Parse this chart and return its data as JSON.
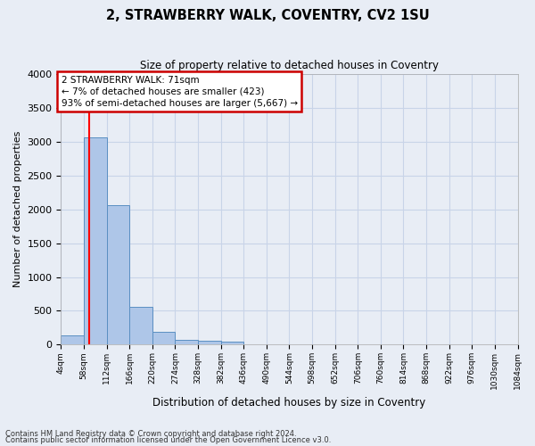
{
  "title": "2, STRAWBERRY WALK, COVENTRY, CV2 1SU",
  "subtitle": "Size of property relative to detached houses in Coventry",
  "xlabel": "Distribution of detached houses by size in Coventry",
  "ylabel": "Number of detached properties",
  "bin_labels": [
    "4sqm",
    "58sqm",
    "112sqm",
    "166sqm",
    "220sqm",
    "274sqm",
    "328sqm",
    "382sqm",
    "436sqm",
    "490sqm",
    "544sqm",
    "598sqm",
    "652sqm",
    "706sqm",
    "760sqm",
    "814sqm",
    "868sqm",
    "922sqm",
    "976sqm",
    "1030sqm",
    "1084sqm"
  ],
  "bar_values": [
    140,
    3060,
    2060,
    560,
    195,
    75,
    55,
    40,
    0,
    0,
    0,
    0,
    0,
    0,
    0,
    0,
    0,
    0,
    0,
    0
  ],
  "bar_color": "#aec6e8",
  "bar_edge_color": "#5a8fc2",
  "grid_color": "#c8d4e8",
  "background_color": "#e8edf5",
  "ylim": [
    0,
    4000
  ],
  "yticks": [
    0,
    500,
    1000,
    1500,
    2000,
    2500,
    3000,
    3500,
    4000
  ],
  "annotation_text": "2 STRAWBERRY WALK: 71sqm\n← 7% of detached houses are smaller (423)\n93% of semi-detached houses are larger (5,667) →",
  "annotation_box_color": "#ffffff",
  "annotation_box_edge": "#cc0000",
  "property_size_sqm": 71,
  "vline_x": 1.24,
  "footnote_line1": "Contains HM Land Registry data © Crown copyright and database right 2024.",
  "footnote_line2": "Contains public sector information licensed under the Open Government Licence v3.0."
}
